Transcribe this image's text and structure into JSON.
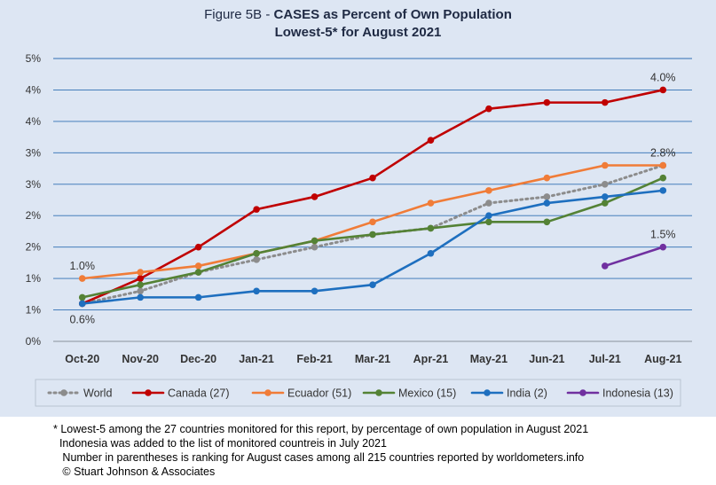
{
  "title": {
    "prefix": "Figure 5B - ",
    "main": "CASES as Percent of Own Population",
    "line2": "Lowest-5* for August 2021"
  },
  "chart_data": {
    "type": "line",
    "categories": [
      "Oct-20",
      "Nov-20",
      "Dec-20",
      "Jan-21",
      "Feb-21",
      "Mar-21",
      "Apr-21",
      "May-21",
      "Jun-21",
      "Jul-21",
      "Aug-21"
    ],
    "y_tick_labels": [
      "0%",
      "1%",
      "1%",
      "2%",
      "2%",
      "3%",
      "3%",
      "4%",
      "4%",
      "5%"
    ],
    "ylim": [
      0,
      4.5
    ],
    "grid": true,
    "legend_position": "bottom",
    "series": [
      {
        "name": "World",
        "color": "#8c8c8c",
        "dashed": true,
        "values": [
          0.6,
          0.8,
          1.1,
          1.3,
          1.5,
          1.7,
          1.8,
          2.2,
          2.3,
          2.5,
          2.8
        ]
      },
      {
        "name": "Canada (27)",
        "color": "#c00000",
        "dashed": false,
        "values": [
          0.6,
          1.0,
          1.5,
          2.1,
          2.3,
          2.6,
          3.2,
          3.7,
          3.8,
          3.8,
          4.0
        ]
      },
      {
        "name": "Ecuador (51)",
        "color": "#f07c38",
        "dashed": false,
        "values": [
          1.0,
          1.1,
          1.2,
          1.4,
          1.6,
          1.9,
          2.2,
          2.4,
          2.6,
          2.8,
          2.8
        ]
      },
      {
        "name": "Mexico (15)",
        "color": "#548235",
        "dashed": false,
        "values": [
          0.7,
          0.9,
          1.1,
          1.4,
          1.6,
          1.7,
          1.8,
          1.9,
          1.9,
          2.2,
          2.6
        ]
      },
      {
        "name": "India (2)",
        "color": "#1e6fbf",
        "dashed": false,
        "values": [
          0.6,
          0.7,
          0.7,
          0.8,
          0.8,
          0.9,
          1.4,
          2.0,
          2.2,
          2.3,
          2.4
        ]
      },
      {
        "name": "Indonesia (13)",
        "color": "#7030a0",
        "dashed": false,
        "values": [
          null,
          null,
          null,
          null,
          null,
          null,
          null,
          null,
          null,
          1.2,
          1.5
        ]
      }
    ],
    "annotations": [
      {
        "text": "1.0%",
        "category": "Oct-20",
        "value": 1.0,
        "placement": "above"
      },
      {
        "text": "0.6%",
        "category": "Oct-20",
        "value": 0.6,
        "placement": "below"
      },
      {
        "text": "4.0%",
        "category": "Aug-21",
        "value": 4.0,
        "placement": "above"
      },
      {
        "text": "2.8%",
        "category": "Aug-21",
        "value": 2.8,
        "placement": "above"
      },
      {
        "text": "1.5%",
        "category": "Aug-21",
        "value": 1.5,
        "placement": "above"
      }
    ]
  },
  "notes": [
    "* Lowest-5 among the 27 countries monitored for this report, by percentage of own population in August 2021",
    "  Indonesia was added to the list of monitored countreis in July 2021",
    "   Number in parentheses is ranking for August cases among all 215 countries reported by worldometers.info",
    "   © Stuart Johnson & Associates"
  ]
}
